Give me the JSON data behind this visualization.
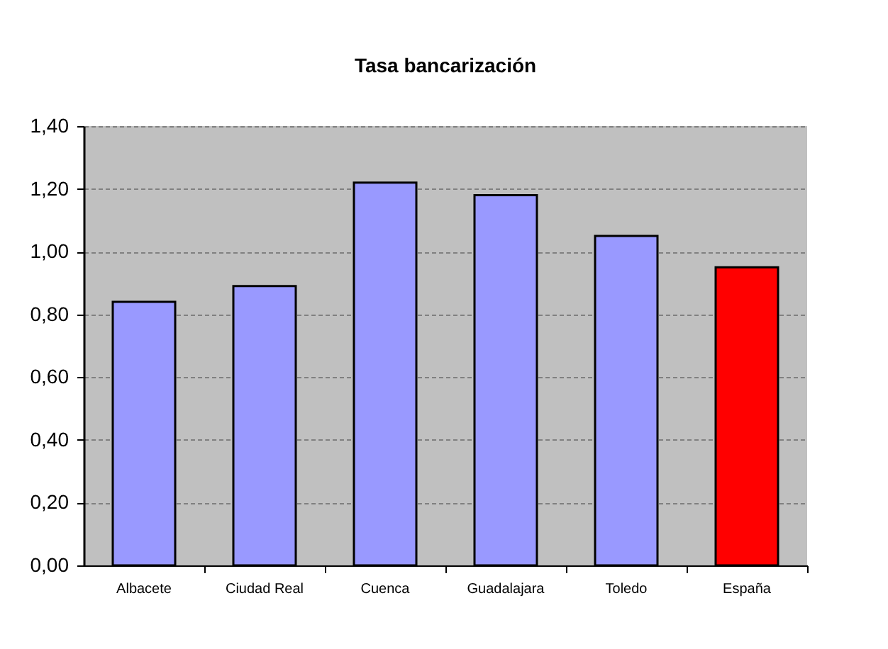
{
  "chart_data": {
    "type": "bar",
    "title": "Tasa bancarización",
    "categories": [
      "Albacete",
      "Ciudad Real",
      "Cuenca",
      "Guadalajara",
      "Toledo",
      "España"
    ],
    "values": [
      0.84,
      0.89,
      1.22,
      1.18,
      1.05,
      0.95
    ],
    "colors": [
      "#9999ff",
      "#9999ff",
      "#9999ff",
      "#9999ff",
      "#9999ff",
      "#ff0000"
    ],
    "ylim": [
      0,
      1.4
    ],
    "yticks": [
      {
        "value": 0,
        "label": "0,00"
      },
      {
        "value": 0.2,
        "label": "0,20"
      },
      {
        "value": 0.4,
        "label": "0,40"
      },
      {
        "value": 0.6,
        "label": "0,60"
      },
      {
        "value": 0.8,
        "label": "0,80"
      },
      {
        "value": 1.0,
        "label": "1,00"
      },
      {
        "value": 1.2,
        "label": "1,20"
      },
      {
        "value": 1.4,
        "label": "1,40"
      }
    ],
    "grid": "y"
  }
}
